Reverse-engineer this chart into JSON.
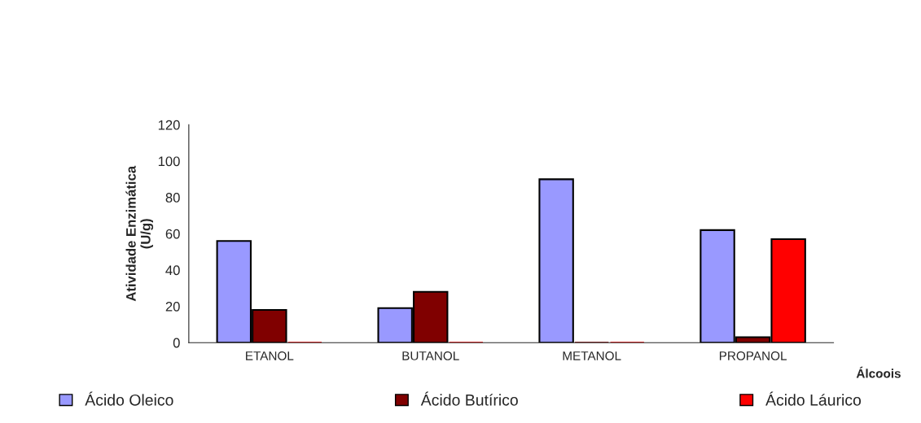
{
  "chart_data": {
    "type": "bar",
    "xlabel": "Álcoois",
    "ylabel": "Atividade Enzimática\n(U/g)",
    "categories": [
      "ETANOL",
      "BUTANOL",
      "METANOL",
      "PROPANOL"
    ],
    "series": [
      {
        "name": "Ácido Oleico",
        "color": "#9999ff",
        "values": [
          56,
          19,
          90,
          62
        ]
      },
      {
        "name": "Ácido Butírico",
        "color": "#800000",
        "values": [
          18,
          28,
          0,
          3
        ]
      },
      {
        "name": "Ácido Láurico",
        "color": "#ff0000",
        "values": [
          0,
          0,
          0,
          57
        ]
      }
    ],
    "ylim": [
      0,
      120
    ],
    "yticks": [
      0,
      20,
      40,
      60,
      80,
      100,
      120
    ],
    "grid": false,
    "legend": "bottom"
  }
}
